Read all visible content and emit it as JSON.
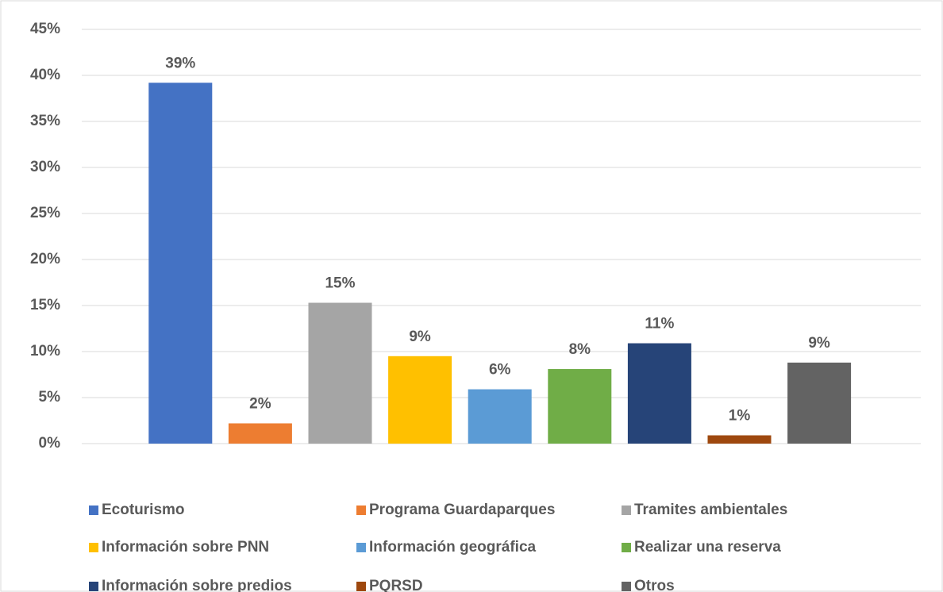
{
  "chart_data": {
    "type": "bar",
    "categories": [
      "Ecoturismo",
      "Programa Guardaparques",
      "Tramites ambientales",
      "Información sobre PNN",
      "Información geográfica",
      "Realizar una reserva",
      "Información sobre predios",
      "PQRSD",
      "Otros"
    ],
    "values": [
      39.2,
      2.2,
      15.3,
      9.5,
      5.9,
      8.1,
      10.9,
      0.9,
      8.8
    ],
    "value_labels": [
      "39%",
      "2%",
      "15%",
      "9%",
      "6%",
      "8%",
      "11%",
      "1%",
      "9%"
    ],
    "colors": [
      "#4472c4",
      "#ed7d31",
      "#a5a5a5",
      "#ffc000",
      "#5b9bd5",
      "#70ad47",
      "#264478",
      "#9e480e",
      "#636363"
    ],
    "ylim": [
      0,
      45
    ],
    "yticks": [
      {
        "value": 0,
        "label": "0%"
      },
      {
        "value": 5,
        "label": "5%"
      },
      {
        "value": 10,
        "label": "10%"
      },
      {
        "value": 15,
        "label": "15%"
      },
      {
        "value": 20,
        "label": "20%"
      },
      {
        "value": 25,
        "label": "25%"
      },
      {
        "value": 30,
        "label": "30%"
      },
      {
        "value": 35,
        "label": "35%"
      },
      {
        "value": 40,
        "label": "40%"
      },
      {
        "value": 45,
        "label": "45%"
      }
    ],
    "grid": true,
    "legend": "bottom"
  }
}
